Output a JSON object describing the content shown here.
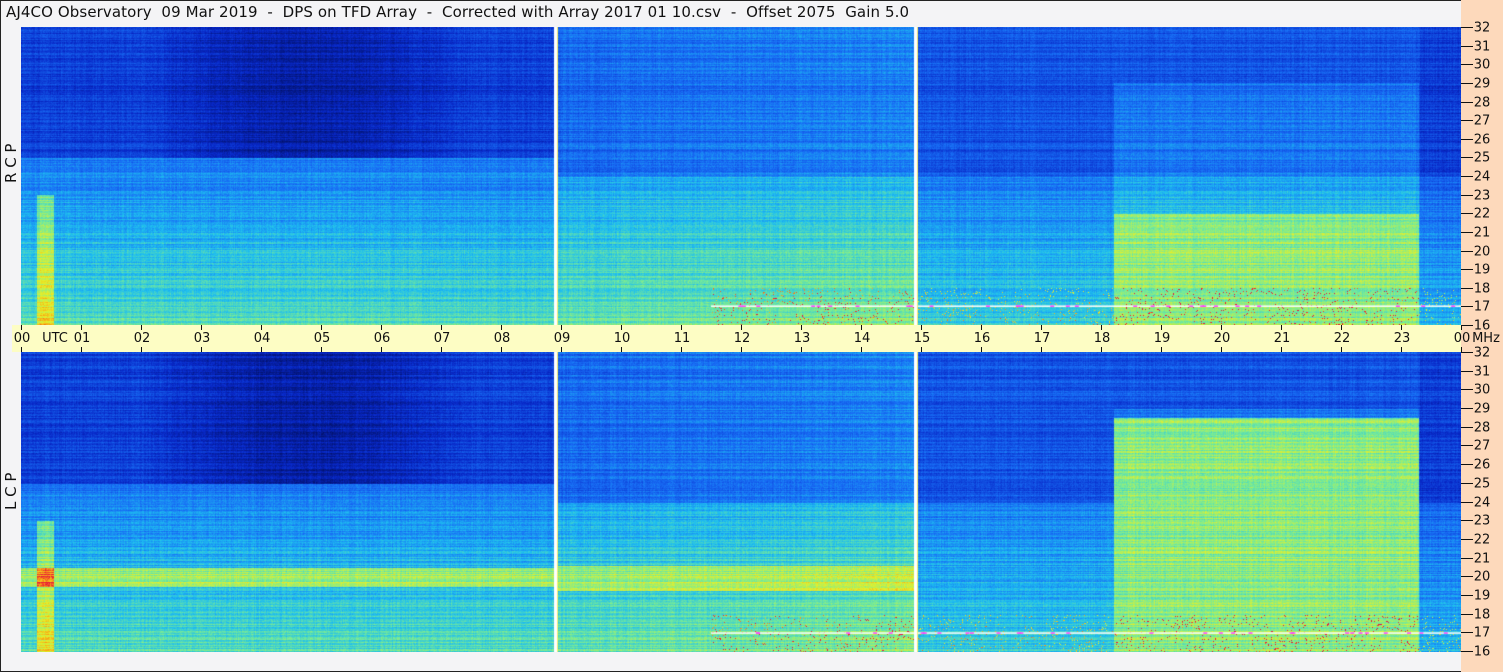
{
  "title": "AJ4CO Observatory  09 Mar 2019  -  DPS on TFD Array  -  Corrected with Array 2017 01 10.csv  -  Offset 2075  Gain 5.0",
  "chart_data": {
    "type": "heatmap",
    "title": "AJ4CO Observatory  09 Mar 2019  -  DPS on TFD Array  -  Corrected with Array 2017 01 10.csv  -  Offset 2075  Gain 5.0",
    "panels": [
      {
        "label": "R C P",
        "x_range_utc_hours": [
          0,
          24
        ],
        "y_range_mhz": [
          16,
          32
        ]
      },
      {
        "label": "L C P",
        "x_range_utc_hours": [
          0,
          24
        ],
        "y_range_mhz": [
          16,
          32
        ]
      }
    ],
    "x_ticks": [
      "00",
      "01",
      "02",
      "03",
      "04",
      "05",
      "06",
      "07",
      "08",
      "09",
      "10",
      "11",
      "12",
      "13",
      "14",
      "15",
      "16",
      "17",
      "18",
      "19",
      "20",
      "21",
      "22",
      "23",
      "00"
    ],
    "x_unit_label": "UTC",
    "x_end_unit_label": "MHz",
    "y_ticks": [
      "32",
      "31",
      "30",
      "29",
      "28",
      "27",
      "26",
      "25",
      "24",
      "23",
      "22",
      "21",
      "20",
      "19",
      "18",
      "17",
      "16"
    ],
    "colormap": "jet",
    "colors": {
      "low": "#001060",
      "mid": "#1878f0",
      "high": "#f0f020",
      "marker_line": "#ffffff",
      "axis_bg": "#fdfdc4",
      "right_margin_bg": "#fdd9bb"
    }
  }
}
